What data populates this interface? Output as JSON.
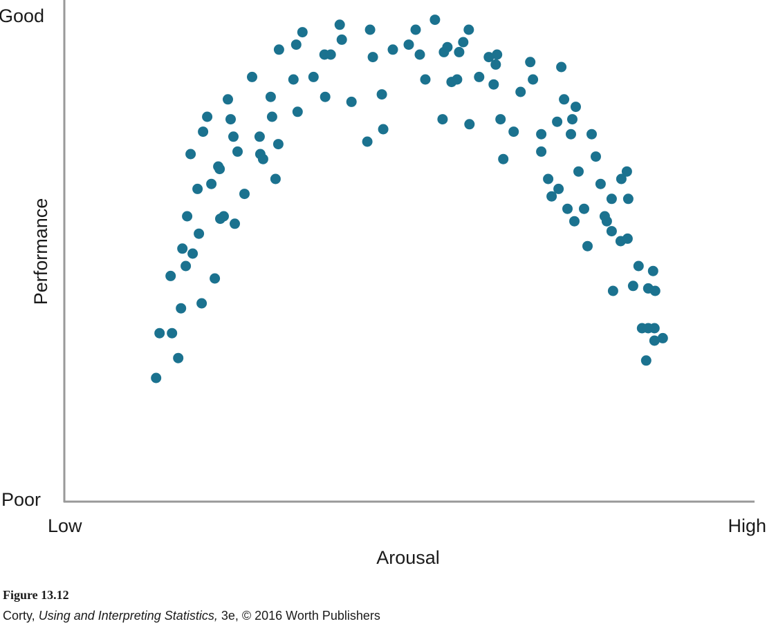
{
  "chart_data": {
    "type": "scatter",
    "title": "",
    "xlabel": "Arousal",
    "ylabel": "Performance",
    "x_tick_labels": [
      "Low",
      "High"
    ],
    "y_tick_labels": [
      "Poor",
      "Good"
    ],
    "xlim": [
      0,
      100
    ],
    "ylim": [
      0,
      100
    ],
    "grid": false,
    "legend": "none",
    "point_color": "#1b728f",
    "axis_color": "#999999",
    "points": [
      [
        13.3,
        25
      ],
      [
        13.8,
        34
      ],
      [
        15.6,
        34
      ],
      [
        16.5,
        29
      ],
      [
        16.9,
        39
      ],
      [
        15.4,
        45.5
      ],
      [
        17.1,
        51
      ],
      [
        17.6,
        47.5
      ],
      [
        17.8,
        57.5
      ],
      [
        18.3,
        70
      ],
      [
        18.6,
        50
      ],
      [
        19.3,
        63
      ],
      [
        19.5,
        54
      ],
      [
        19.9,
        40
      ],
      [
        20.1,
        74.5
      ],
      [
        20.7,
        77.5
      ],
      [
        21.3,
        64
      ],
      [
        21.8,
        45
      ],
      [
        22.3,
        67.5
      ],
      [
        22.5,
        67
      ],
      [
        22.6,
        57
      ],
      [
        23.1,
        57.5
      ],
      [
        23.7,
        81
      ],
      [
        24.1,
        77
      ],
      [
        24.5,
        73.5
      ],
      [
        24.7,
        56
      ],
      [
        25.1,
        70.5
      ],
      [
        26.1,
        62
      ],
      [
        27.2,
        85.5
      ],
      [
        28.3,
        73.5
      ],
      [
        28.4,
        70
      ],
      [
        28.8,
        69
      ],
      [
        29.9,
        81.5
      ],
      [
        30.1,
        77.5
      ],
      [
        30.6,
        65
      ],
      [
        31.0,
        72
      ],
      [
        31.1,
        91
      ],
      [
        33.2,
        85
      ],
      [
        33.6,
        92
      ],
      [
        33.8,
        78.5
      ],
      [
        34.5,
        94.5
      ],
      [
        36.1,
        85.5
      ],
      [
        37.7,
        90
      ],
      [
        37.8,
        81.5
      ],
      [
        38.6,
        90
      ],
      [
        39.9,
        96
      ],
      [
        40.2,
        93
      ],
      [
        41.6,
        80.5
      ],
      [
        43.9,
        72.5
      ],
      [
        44.3,
        95
      ],
      [
        44.7,
        89.5
      ],
      [
        46.0,
        82
      ],
      [
        46.2,
        75
      ],
      [
        47.6,
        91
      ],
      [
        49.9,
        92
      ],
      [
        50.9,
        95
      ],
      [
        51.5,
        90
      ],
      [
        52.3,
        85
      ],
      [
        53.7,
        97
      ],
      [
        54.8,
        77
      ],
      [
        55.0,
        90.5
      ],
      [
        55.5,
        91.5
      ],
      [
        56.1,
        84.5
      ],
      [
        56.9,
        85
      ],
      [
        57.2,
        90.5
      ],
      [
        57.8,
        92.5
      ],
      [
        58.6,
        95
      ],
      [
        58.7,
        76
      ],
      [
        60.1,
        85.5
      ],
      [
        61.5,
        89.5
      ],
      [
        62.2,
        84
      ],
      [
        62.5,
        88
      ],
      [
        62.7,
        90
      ],
      [
        63.2,
        77
      ],
      [
        63.6,
        69
      ],
      [
        65.1,
        74.5
      ],
      [
        66.1,
        82.5
      ],
      [
        67.5,
        88.5
      ],
      [
        67.9,
        85
      ],
      [
        69.1,
        70.5
      ],
      [
        69.1,
        74
      ],
      [
        70.1,
        65
      ],
      [
        70.6,
        61.5
      ],
      [
        71.4,
        76.5
      ],
      [
        71.6,
        63
      ],
      [
        72.0,
        87.5
      ],
      [
        72.4,
        81
      ],
      [
        72.9,
        59
      ],
      [
        73.4,
        74
      ],
      [
        73.6,
        77
      ],
      [
        73.9,
        56.5
      ],
      [
        74.1,
        79.5
      ],
      [
        74.5,
        66.5
      ],
      [
        75.3,
        59
      ],
      [
        75.8,
        51.5
      ],
      [
        76.4,
        74
      ],
      [
        77.0,
        69.5
      ],
      [
        77.7,
        64
      ],
      [
        78.3,
        57.5
      ],
      [
        78.6,
        56.5
      ],
      [
        79.3,
        61
      ],
      [
        79.3,
        54.5
      ],
      [
        79.5,
        42.5
      ],
      [
        80.6,
        52.5
      ],
      [
        80.7,
        65
      ],
      [
        81.5,
        66.5
      ],
      [
        81.6,
        53
      ],
      [
        81.7,
        61
      ],
      [
        82.4,
        43.5
      ],
      [
        83.2,
        47.5
      ],
      [
        83.7,
        35
      ],
      [
        84.3,
        28.5
      ],
      [
        84.6,
        35
      ],
      [
        84.6,
        43
      ],
      [
        85.3,
        46.5
      ],
      [
        85.5,
        32.5
      ],
      [
        85.5,
        35
      ],
      [
        85.6,
        42.5
      ],
      [
        86.7,
        33
      ]
    ]
  },
  "caption": {
    "figure_label": "Figure 13.12",
    "author": "Corty,",
    "book_title": "Using and Interpreting Statistics,",
    "edition_publisher": "3e, © 2016 Worth Publishers"
  }
}
